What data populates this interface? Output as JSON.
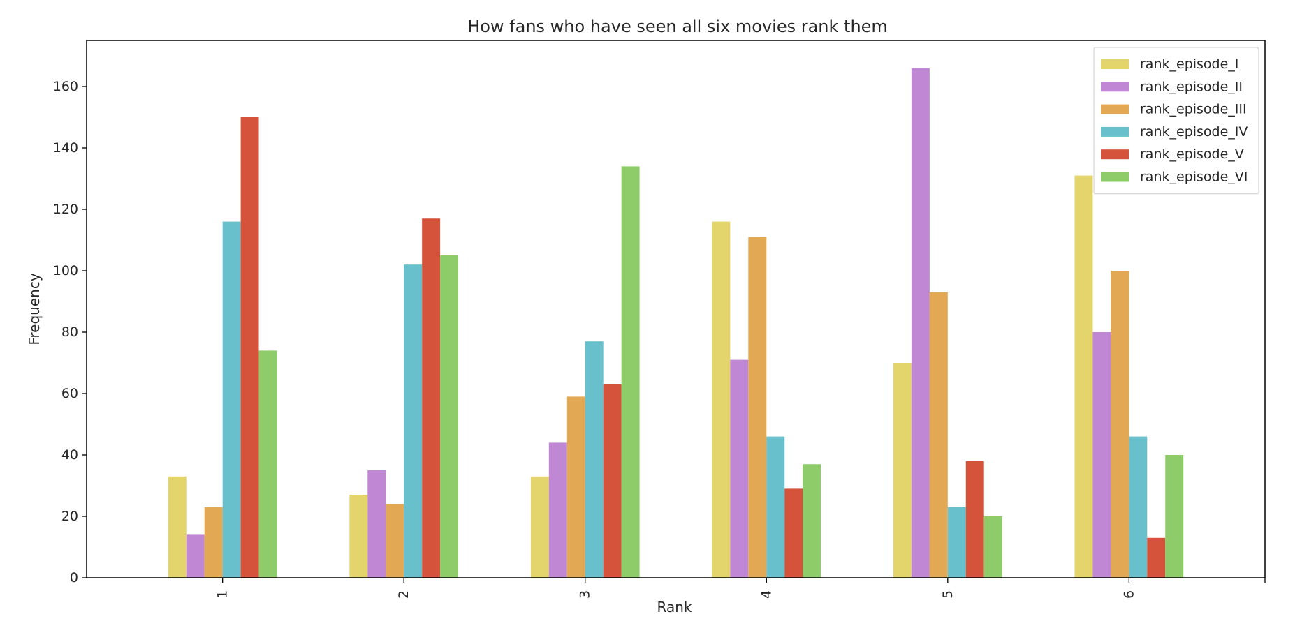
{
  "chart_data": {
    "type": "bar",
    "title": "How fans who have seen all six movies rank them",
    "xlabel": "Rank",
    "ylabel": "Frequency",
    "categories": [
      "1",
      "2",
      "3",
      "4",
      "5",
      "6"
    ],
    "ylim": [
      0,
      175
    ],
    "yticks": [
      "0",
      "20",
      "40",
      "60",
      "80",
      "100",
      "120",
      "140",
      "160"
    ],
    "grid": false,
    "legend_position": "top-right",
    "series": [
      {
        "name": "rank_episode_I",
        "color": "#e3d56b",
        "values": [
          33,
          27,
          33,
          116,
          70,
          131
        ]
      },
      {
        "name": "rank_episode_II",
        "color": "#c087d5",
        "values": [
          14,
          35,
          44,
          71,
          166,
          80
        ]
      },
      {
        "name": "rank_episode_III",
        "color": "#e3a853",
        "values": [
          23,
          24,
          59,
          111,
          93,
          100
        ]
      },
      {
        "name": "rank_episode_IV",
        "color": "#67c0cc",
        "values": [
          116,
          102,
          77,
          46,
          23,
          46
        ]
      },
      {
        "name": "rank_episode_V",
        "color": "#d5533a",
        "values": [
          150,
          117,
          63,
          29,
          38,
          13
        ]
      },
      {
        "name": "rank_episode_VI",
        "color": "#8dcc68",
        "values": [
          74,
          105,
          134,
          37,
          20,
          40
        ]
      }
    ]
  }
}
